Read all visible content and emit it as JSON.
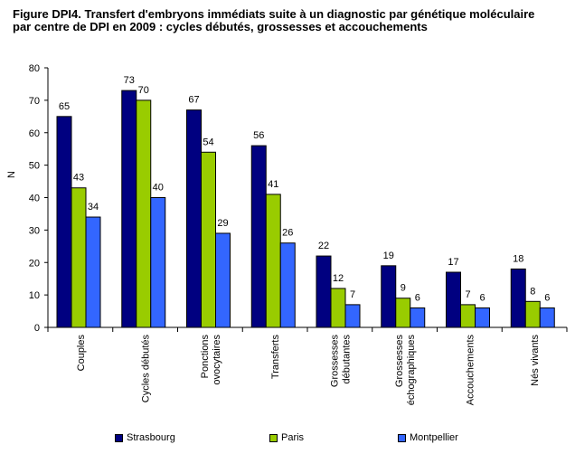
{
  "title_lines": [
    "Figure DPI4. Transfert d'embryons immédiats suite à un diagnostic par génétique moléculaire",
    "par centre de DPI en 2009 : cycles débutés, grossesses et accouchements"
  ],
  "colors": {
    "Strasbourg": "#000080",
    "Paris": "#99cc00",
    "Montpellier": "#3366ff"
  },
  "chart_data": {
    "type": "bar",
    "title": "Figure DPI4. Transfert d'embryons immédiats suite à un diagnostic par génétique moléculaire par centre de DPI en 2009 : cycles débutés, grossesses et accouchements",
    "ylabel": "N",
    "xlabel": "",
    "ylim": [
      0,
      80
    ],
    "yticks": [
      0,
      10,
      20,
      30,
      40,
      50,
      60,
      70,
      80
    ],
    "grid": false,
    "legend": "bottom",
    "categories": [
      [
        "Couples"
      ],
      [
        "Cycles débutés"
      ],
      [
        "Ponctions",
        "ovocytaires"
      ],
      [
        "Transferts"
      ],
      [
        "Grossesses",
        "débutantes"
      ],
      [
        "Grossesses",
        "échographiques"
      ],
      [
        "Accouchements"
      ],
      [
        "Nés vivants"
      ]
    ],
    "series": [
      {
        "name": "Strasbourg",
        "values": [
          65,
          73,
          67,
          56,
          22,
          19,
          17,
          18
        ]
      },
      {
        "name": "Paris",
        "values": [
          43,
          70,
          54,
          41,
          12,
          9,
          7,
          8
        ]
      },
      {
        "name": "Montpellier",
        "values": [
          34,
          40,
          29,
          26,
          7,
          6,
          6,
          6
        ]
      }
    ]
  }
}
